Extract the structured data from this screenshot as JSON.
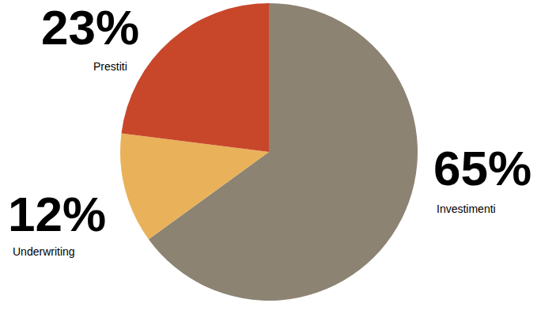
{
  "chart_data": {
    "type": "pie",
    "categories": [
      "Investimenti",
      "Underwriting",
      "Prestiti"
    ],
    "values": [
      65,
      12,
      23
    ],
    "value_labels": [
      "65%",
      "12%",
      "23%"
    ],
    "colors": [
      "#8c8373",
      "#e9b25a",
      "#c8472b"
    ],
    "data_labels": true
  }
}
